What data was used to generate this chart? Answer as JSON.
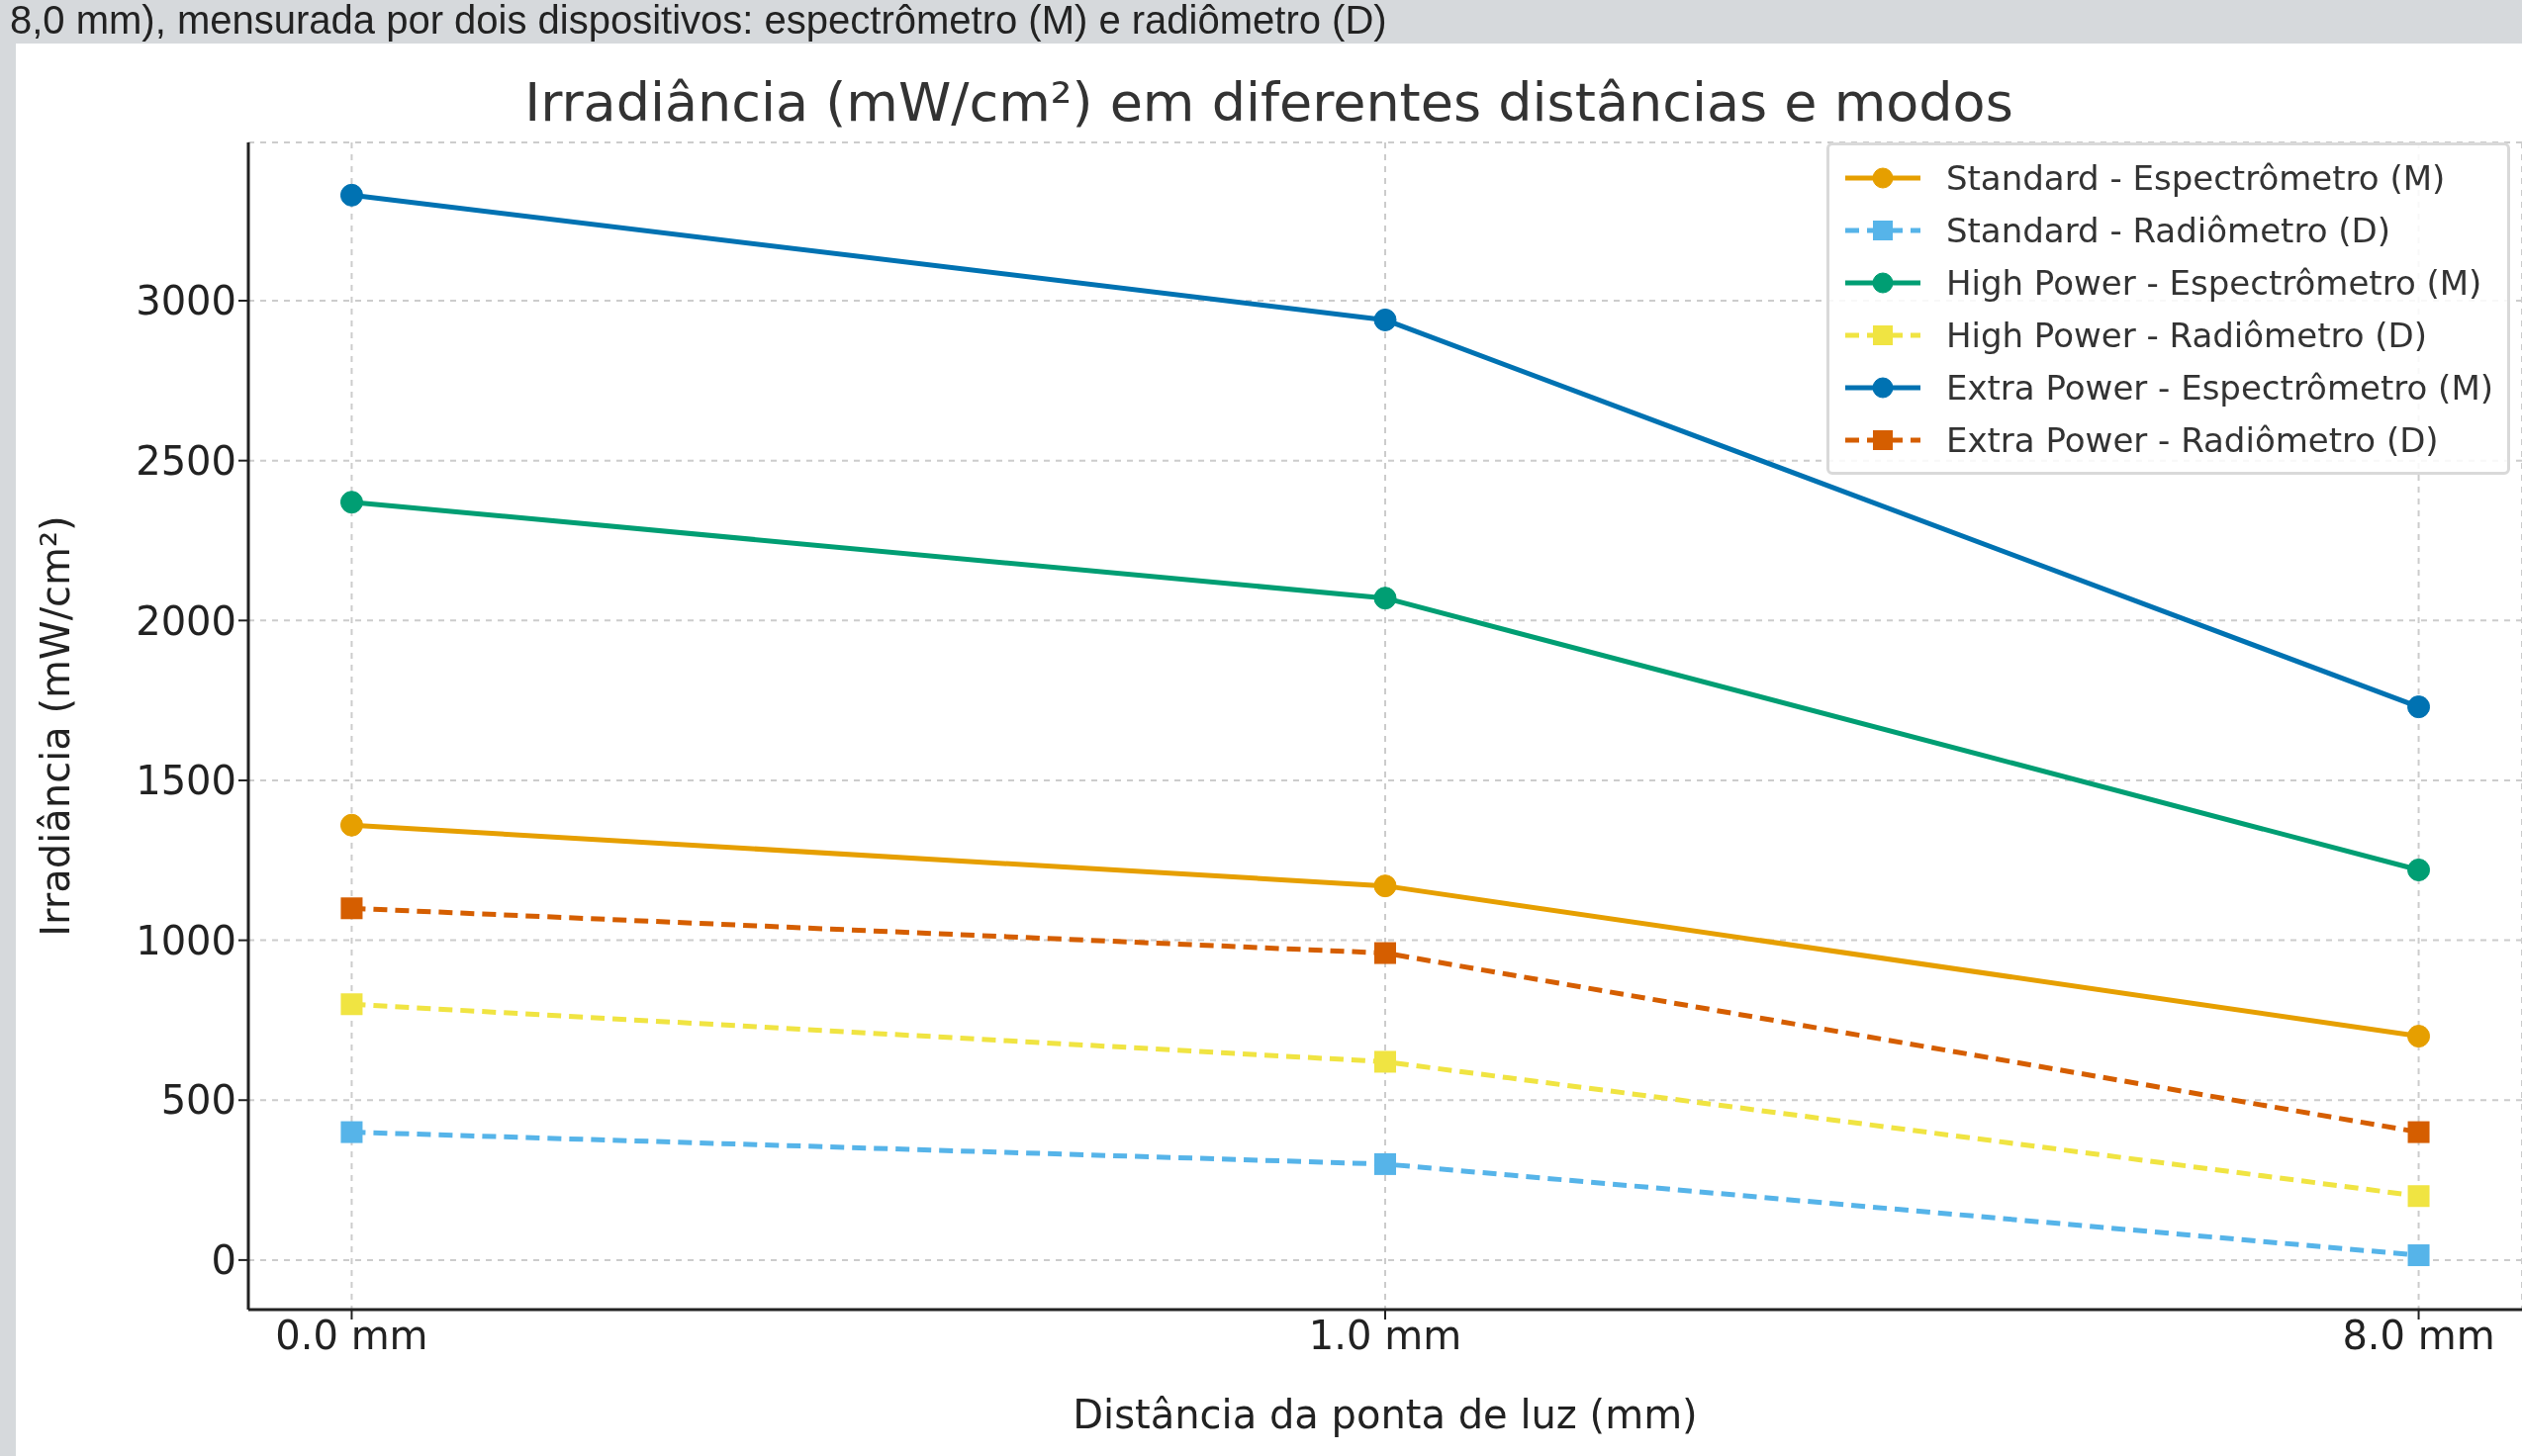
{
  "chart_data": {
    "type": "line",
    "title": "Irradiância (mW/cm²) em diferentes distâncias e modos",
    "xlabel": "Distância da ponta de luz (mm)",
    "ylabel": "Irradiância (mW/cm²)",
    "annotations": [
      "8,0 mm), mensurada por dois dispositivos: espectrômetro (M) e radiômetro (D)"
    ],
    "categories": [
      "0.0 mm",
      "1.0 mm",
      "8.0 mm"
    ],
    "ylim": [
      -155,
      3495
    ],
    "yticks": [
      0,
      500,
      1000,
      1500,
      2000,
      2500,
      3000
    ],
    "grid": true,
    "legend": "top right",
    "series": [
      {
        "name": "Standard - Espectrômetro (M)",
        "color": "#e69f00",
        "values": [
          1360,
          1170,
          700
        ],
        "marker": "circle",
        "line_style": "solid"
      },
      {
        "name": "Standard - Radiômetro (D)",
        "color": "#56b4e9",
        "values": [
          400,
          300,
          15
        ],
        "marker": "square",
        "line_style": "dashed"
      },
      {
        "name": "High Power - Espectrômetro (M)",
        "color": "#009e73",
        "values": [
          2370,
          2070,
          1220
        ],
        "marker": "circle",
        "line_style": "solid"
      },
      {
        "name": "High Power - Radiômetro (D)",
        "color": "#f0e442",
        "values": [
          800,
          620,
          200
        ],
        "marker": "square",
        "line_style": "dashed"
      },
      {
        "name": "Extra Power - Espectrômetro (M)",
        "color": "#0072b2",
        "values": [
          3330,
          2940,
          1730
        ],
        "marker": "circle",
        "line_style": "solid"
      },
      {
        "name": "Extra Power - Radiômetro (D)",
        "color": "#d55e00",
        "values": [
          1100,
          960,
          400
        ],
        "marker": "square",
        "line_style": "dashed"
      }
    ]
  }
}
